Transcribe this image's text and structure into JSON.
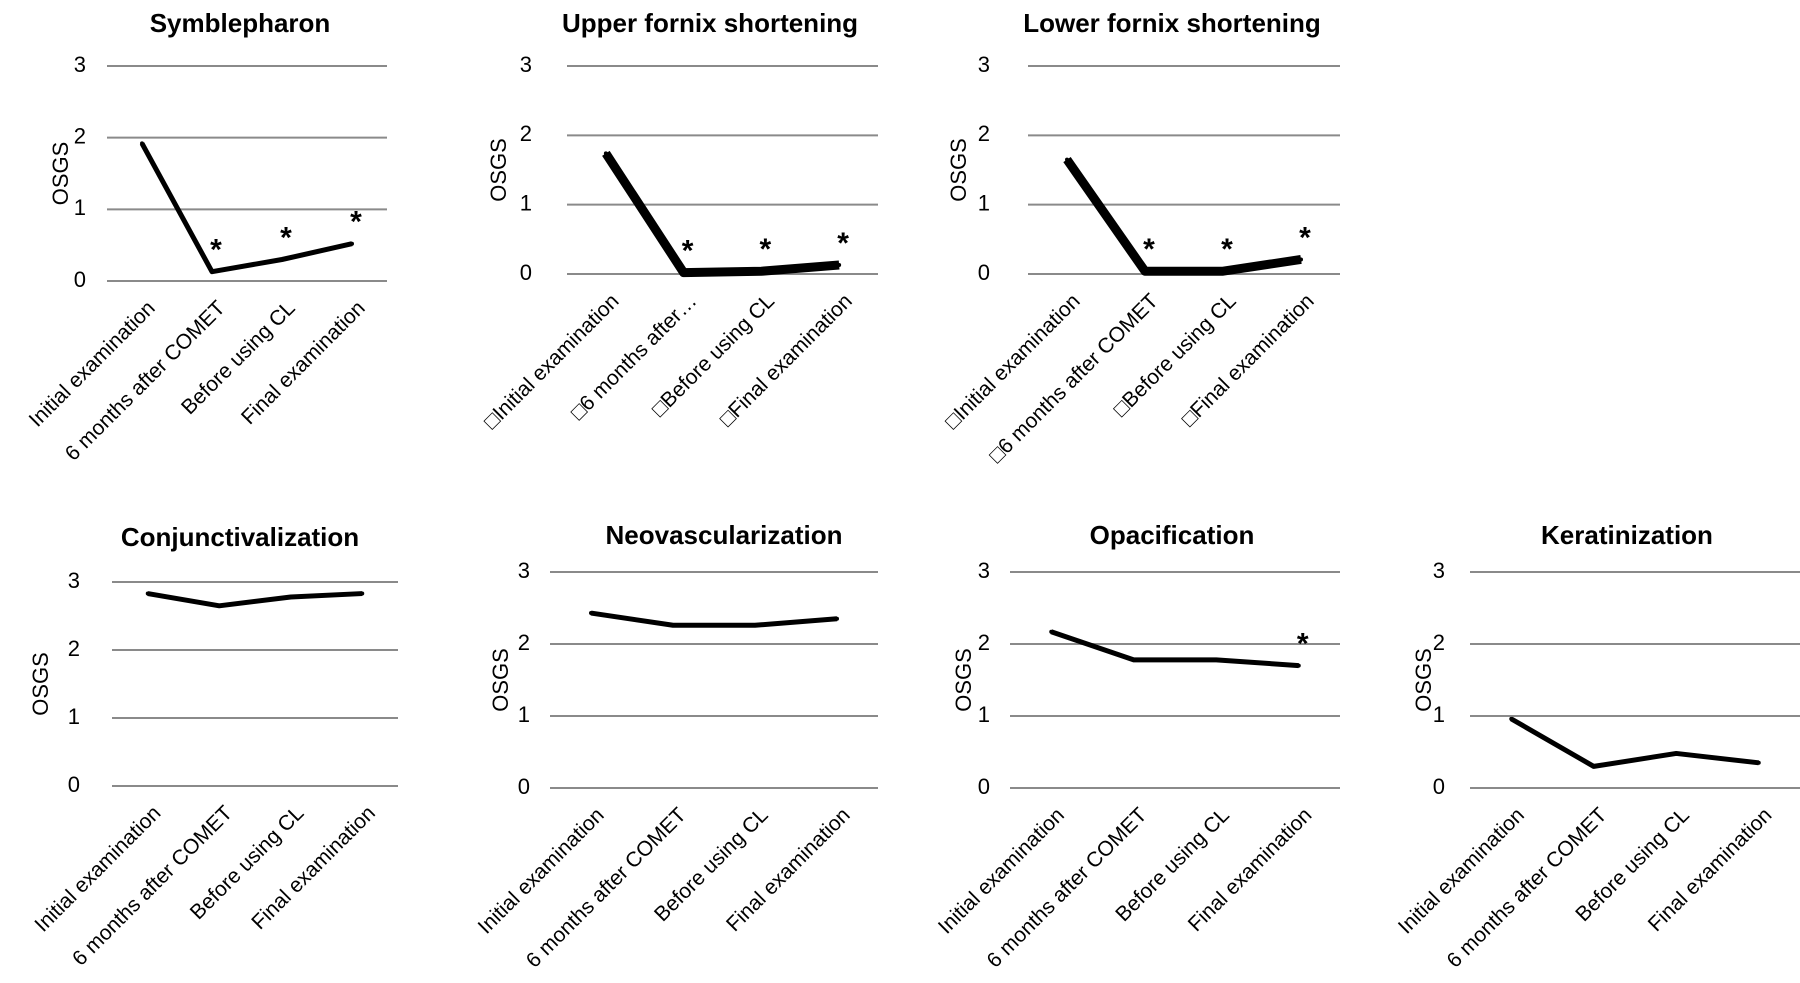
{
  "chart_data": [
    {
      "type": "line",
      "title": "Symblepharon",
      "ylabel": "OSGS",
      "ylim": [
        0,
        3
      ],
      "yticks": [
        "0",
        "1",
        "2",
        "3"
      ],
      "categories": [
        "Initial examination",
        "6 months after COMET",
        "Before using CL",
        "Final examination"
      ],
      "values": [
        1.92,
        0.13,
        0.3,
        0.52
      ],
      "significant": [
        false,
        true,
        true,
        true
      ],
      "significance_marker": "*",
      "line_weight": "normal"
    },
    {
      "type": "line",
      "title": "Upper fornix shortening",
      "ylabel": "OSGS",
      "ylim": [
        0,
        3
      ],
      "yticks": [
        "0",
        "1",
        "2",
        "3"
      ],
      "categories": [
        "□Initial examination",
        "□6 months after…",
        "□Before using CL",
        "□Final examination"
      ],
      "values": [
        1.74,
        0.02,
        0.04,
        0.13
      ],
      "significant": [
        false,
        true,
        true,
        true
      ],
      "significance_marker": "*",
      "line_weight": "bold"
    },
    {
      "type": "line",
      "title": "Lower fornix shortening",
      "ylabel": "OSGS",
      "ylim": [
        0,
        3
      ],
      "yticks": [
        "0",
        "1",
        "2",
        "3"
      ],
      "categories": [
        "□Initial examination",
        "□6 months after COMET",
        "□Before using CL",
        "□Final examination"
      ],
      "values": [
        1.65,
        0.04,
        0.04,
        0.21
      ],
      "significant": [
        false,
        true,
        true,
        true
      ],
      "significance_marker": "*",
      "line_weight": "bold"
    },
    {
      "type": "line",
      "title": "Conjunctivalization",
      "ylabel": "OSGS",
      "ylim": [
        0,
        3
      ],
      "yticks": [
        "0",
        "1",
        "2",
        "3"
      ],
      "categories": [
        "Initial examination",
        "6 months after COMET",
        "Before using CL",
        "Final examination"
      ],
      "values": [
        2.83,
        2.65,
        2.78,
        2.83
      ],
      "significant": [
        false,
        false,
        false,
        false
      ],
      "significance_marker": "*",
      "line_weight": "normal"
    },
    {
      "type": "line",
      "title": "Neovascularization",
      "ylabel": "OSGS",
      "ylim": [
        0,
        3
      ],
      "yticks": [
        "0",
        "1",
        "2",
        "3"
      ],
      "categories": [
        "Initial examination",
        "6 months after COMET",
        "Before using CL",
        "Final examination"
      ],
      "values": [
        2.43,
        2.26,
        2.26,
        2.35
      ],
      "significant": [
        false,
        false,
        false,
        false
      ],
      "significance_marker": "*",
      "line_weight": "normal"
    },
    {
      "type": "line",
      "title": "Opacification",
      "ylabel": "OSGS",
      "ylim": [
        0,
        3
      ],
      "yticks": [
        "0",
        "1",
        "2",
        "3"
      ],
      "categories": [
        "Initial examination",
        "6 months after COMET",
        "Before using CL",
        "Final examination"
      ],
      "values": [
        2.17,
        1.78,
        1.78,
        1.7
      ],
      "significant": [
        false,
        false,
        false,
        true
      ],
      "significance_marker": "*",
      "line_weight": "normal"
    },
    {
      "type": "line",
      "title": "Keratinization",
      "ylabel": "OSGS",
      "ylim": [
        0,
        3
      ],
      "yticks": [
        "0",
        "1",
        "2",
        "3"
      ],
      "categories": [
        "Initial examination",
        "6 months after COMET",
        "Before using CL",
        "Final examination"
      ],
      "values": [
        0.96,
        0.3,
        0.48,
        0.35
      ],
      "significant": [
        false,
        false,
        false,
        false
      ],
      "significance_marker": "*",
      "line_weight": "normal"
    }
  ]
}
